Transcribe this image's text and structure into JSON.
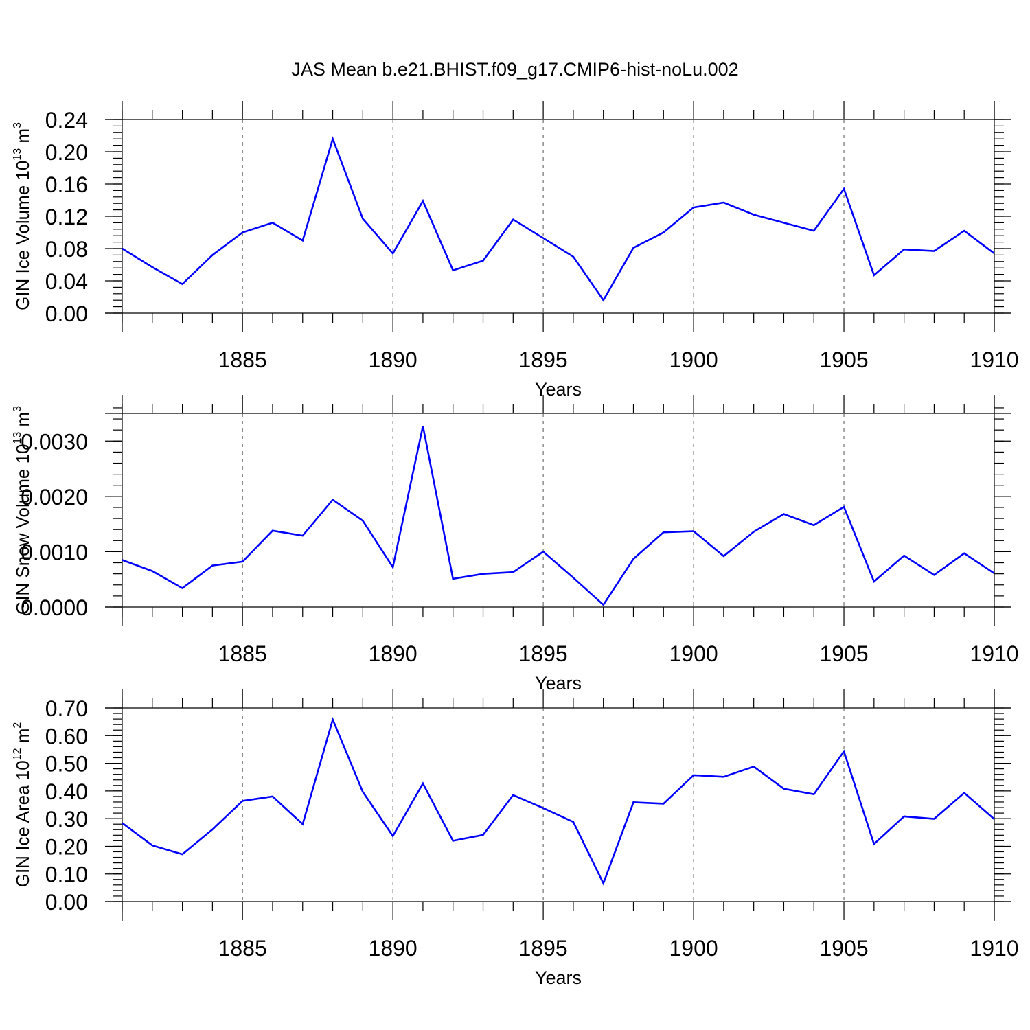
{
  "chart_data": {
    "title": "JAS Mean b.e21.BHIST.f09_g17.CMIP6-hist-noLu.002",
    "type": "line",
    "x": [
      1881,
      1882,
      1883,
      1884,
      1885,
      1886,
      1887,
      1888,
      1889,
      1890,
      1891,
      1892,
      1893,
      1894,
      1895,
      1896,
      1897,
      1898,
      1899,
      1900,
      1901,
      1902,
      1903,
      1904,
      1905,
      1906,
      1907,
      1908,
      1909,
      1910
    ],
    "xlim": [
      1881,
      1910
    ],
    "x_ticks": [
      1885,
      1890,
      1895,
      1900,
      1905,
      1910
    ],
    "xlabel": "Years",
    "series_color": "#0000ff",
    "panels": [
      {
        "ylabel_main": "GIN Ice Volume 10",
        "ylabel_exp": "13",
        "ylabel_unit": " m",
        "ylabel_unit_exp": "3",
        "ylim": [
          0,
          0.24
        ],
        "y_ticks": [
          0,
          0.04,
          0.08,
          0.12,
          0.16,
          0.2,
          0.24
        ],
        "y_tick_labels": [
          "0.00",
          "0.04",
          "0.08",
          "0.12",
          "0.16",
          "0.20",
          "0.24"
        ],
        "values": [
          0.08,
          0.057,
          0.036,
          0.072,
          0.1,
          0.112,
          0.09,
          0.216,
          0.117,
          0.074,
          0.139,
          0.053,
          0.065,
          0.116,
          0.093,
          0.07,
          0.016,
          0.081,
          0.1,
          0.131,
          0.137,
          0.122,
          0.112,
          0.102,
          0.154,
          0.047,
          0.079,
          0.077,
          0.102,
          0.074
        ]
      },
      {
        "ylabel_main": "GIN Snow Volume 10",
        "ylabel_exp": "13",
        "ylabel_unit": " m",
        "ylabel_unit_exp": "3",
        "ylim": [
          0,
          0.0035
        ],
        "y_ticks": [
          0,
          0.001,
          0.002,
          0.003
        ],
        "y_tick_labels": [
          "0.0000",
          "0.0010",
          "0.0020",
          "0.0030"
        ],
        "values": [
          0.00085,
          0.00065,
          0.00034,
          0.00075,
          0.00082,
          0.00138,
          0.00129,
          0.00194,
          0.00156,
          0.00072,
          0.00327,
          0.00051,
          0.0006,
          0.00063,
          0.001,
          0.00053,
          4e-05,
          0.00087,
          0.00135,
          0.00137,
          0.00092,
          0.00136,
          0.00168,
          0.00148,
          0.00181,
          0.00046,
          0.00093,
          0.00058,
          0.00097,
          0.00061
        ]
      },
      {
        "ylabel_main": "GIN Ice Area 10",
        "ylabel_exp": "12",
        "ylabel_unit": " m",
        "ylabel_unit_exp": "2",
        "ylim": [
          0,
          0.7
        ],
        "y_ticks": [
          0,
          0.1,
          0.2,
          0.3,
          0.4,
          0.5,
          0.6,
          0.7
        ],
        "y_tick_labels": [
          "0.00",
          "0.10",
          "0.20",
          "0.30",
          "0.40",
          "0.50",
          "0.60",
          "0.70"
        ],
        "values": [
          0.284,
          0.203,
          0.171,
          0.261,
          0.364,
          0.38,
          0.28,
          0.658,
          0.397,
          0.237,
          0.427,
          0.22,
          0.241,
          0.385,
          0.338,
          0.288,
          0.066,
          0.359,
          0.354,
          0.457,
          0.451,
          0.488,
          0.408,
          0.388,
          0.543,
          0.208,
          0.308,
          0.299,
          0.393,
          0.298
        ]
      }
    ]
  }
}
